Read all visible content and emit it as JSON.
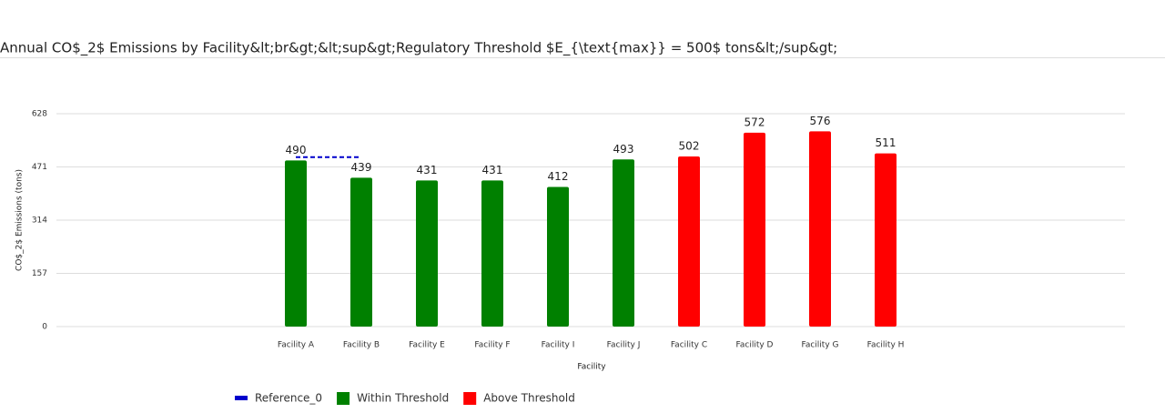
{
  "chart_data": {
    "type": "bar",
    "title": "Annual CO$_2$ Emissions by Facility&lt;br&gt;&lt;sup&gt;Regulatory Threshold $E_{\\text{max}} = 500$ tons&lt;/sup&gt;",
    "xlabel": "Facility",
    "ylabel": "CO$_2$ Emissions (tons)",
    "categories": [
      "Facility A",
      "Facility B",
      "Facility E",
      "Facility F",
      "Facility I",
      "Facility J",
      "Facility C",
      "Facility D",
      "Facility G",
      "Facility H"
    ],
    "series": [
      {
        "name": "Reference_0",
        "type": "line",
        "dash": true,
        "color": "#0000cc",
        "values": [
          500,
          500,
          null,
          null,
          null,
          null,
          null,
          null,
          null,
          null
        ]
      },
      {
        "name": "Within Threshold",
        "type": "bar",
        "color": "#008000",
        "values": [
          490,
          439,
          431,
          431,
          412,
          493,
          null,
          null,
          null,
          null
        ]
      },
      {
        "name": "Above Threshold",
        "type": "bar",
        "color": "#ff0000",
        "values": [
          null,
          null,
          null,
          null,
          null,
          null,
          502,
          572,
          576,
          511
        ]
      }
    ],
    "ylim": [
      0,
      628
    ],
    "yticks": [
      0,
      157,
      314,
      471,
      628
    ],
    "grid": true,
    "legend": "bottom"
  }
}
